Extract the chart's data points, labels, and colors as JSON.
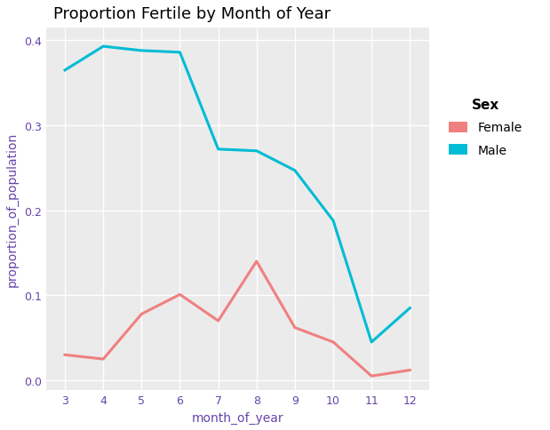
{
  "title": "Proportion Fertile by Month of Year",
  "xlabel": "month_of_year",
  "ylabel": "proportion_of_population",
  "x_months": [
    3,
    4,
    5,
    6,
    7,
    8,
    9,
    10,
    11,
    12
  ],
  "female_y": [
    0.03,
    0.025,
    0.078,
    0.101,
    0.07,
    0.14,
    0.062,
    0.045,
    0.005,
    0.012
  ],
  "male_y": [
    0.365,
    0.393,
    0.388,
    0.386,
    0.272,
    0.27,
    0.247,
    0.188,
    0.045,
    0.085
  ],
  "female_color": "#F08080",
  "male_color": "#00BCD4",
  "bg_color": "#EBEBEB",
  "grid_color": "#FFFFFF",
  "ylim": [
    -0.012,
    0.415
  ],
  "yticks": [
    0.0,
    0.1,
    0.2,
    0.3,
    0.4
  ],
  "xticks": [
    3,
    4,
    5,
    6,
    7,
    8,
    9,
    10,
    11,
    12
  ],
  "legend_title": "Sex",
  "legend_labels": [
    "Female",
    "Male"
  ],
  "line_width": 2.2,
  "title_fontsize": 13,
  "label_fontsize": 10,
  "tick_fontsize": 9,
  "legend_fontsize": 10,
  "legend_title_fontsize": 11,
  "title_color": "#000000",
  "axis_label_color": "#6644AA",
  "tick_label_color": "#6644AA"
}
